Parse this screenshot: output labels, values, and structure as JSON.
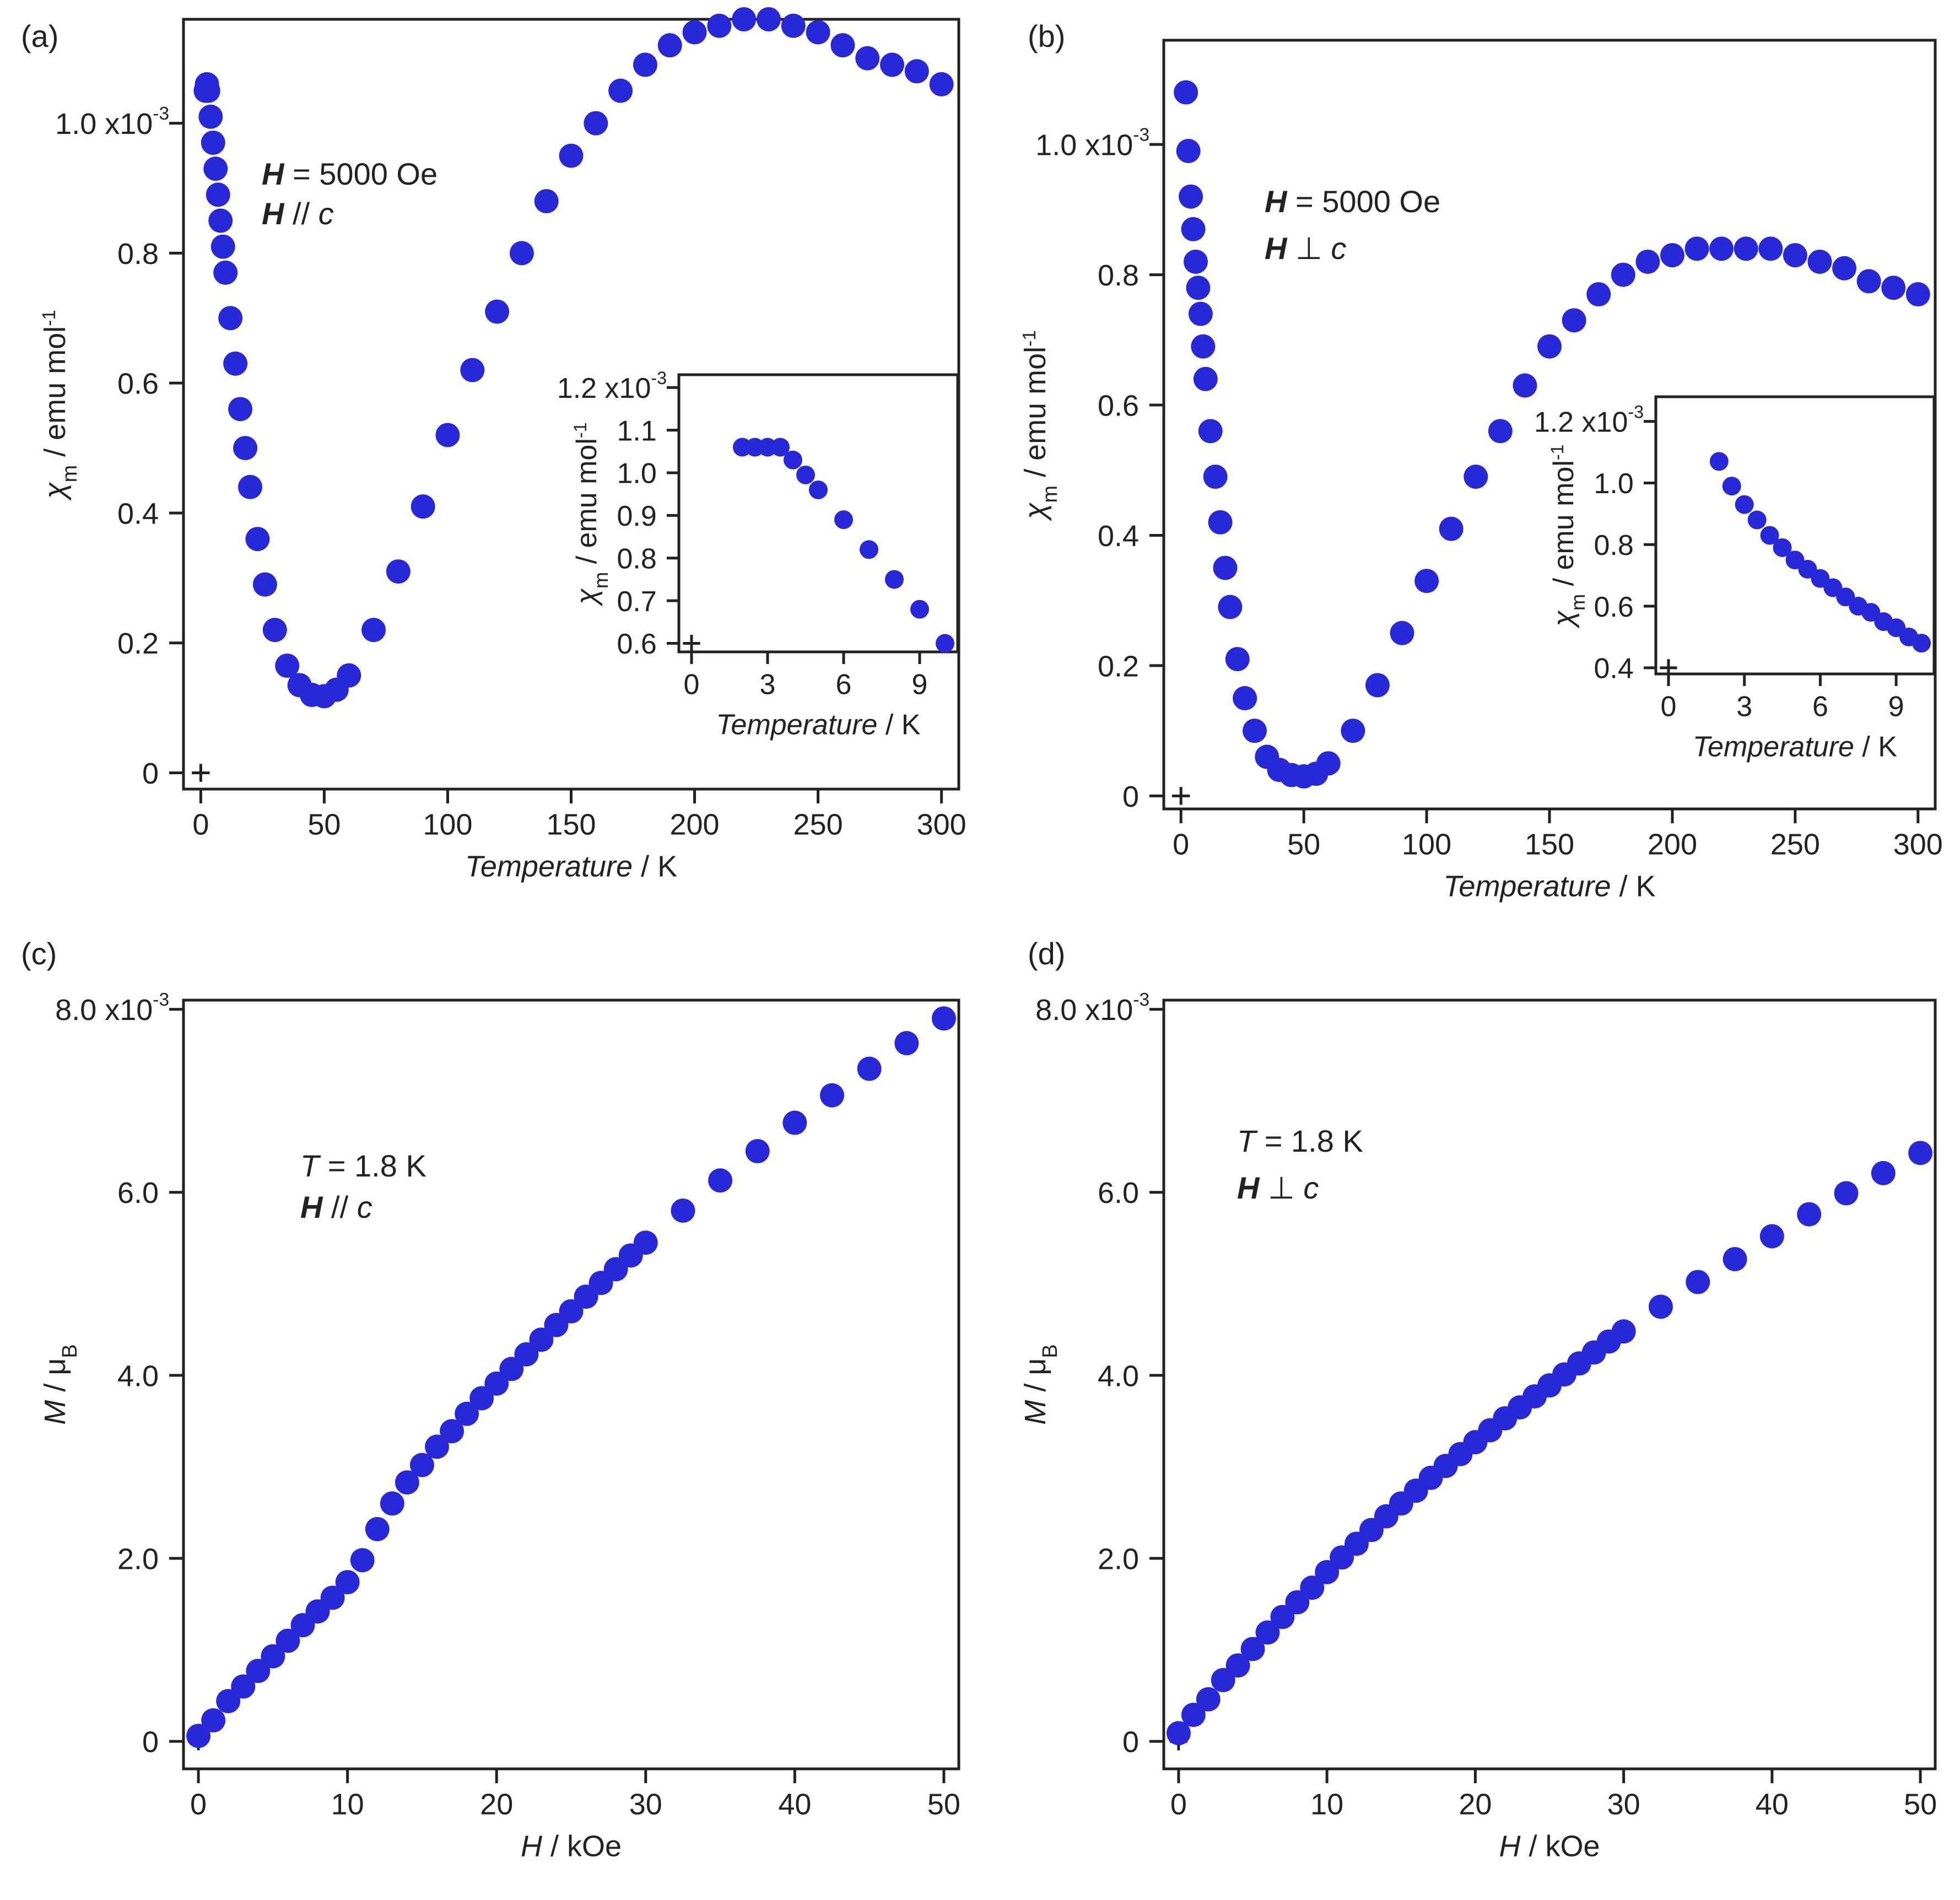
{
  "figure": {
    "marker_color": "#2828D8",
    "axis_color": "#222222"
  },
  "chart_data": [
    {
      "id": "a",
      "panel_label": "(a)",
      "type": "scatter",
      "xlabel": {
        "italic": "Temperature",
        "rest": " / K"
      },
      "ylabel": {
        "chi": "χ",
        "sub": "m",
        "rest": " / emu mol",
        "sup": "-1"
      },
      "xlim": [
        -7,
        307
      ],
      "ylim": [
        -2.5e-05,
        0.00116
      ],
      "xticks": [
        0,
        50,
        100,
        150,
        200,
        250,
        300
      ],
      "xtick_labels": [
        "0",
        "50",
        "100",
        "150",
        "200",
        "250",
        "300"
      ],
      "yticks": [
        0,
        0.0002,
        0.0004,
        0.0006,
        0.0008,
        0.001
      ],
      "ytick_labels": [
        "0",
        "0.2",
        "0.4",
        "0.6",
        "0.8",
        "1.0 x10"
      ],
      "ytick_sups": [
        "",
        "",
        "",
        "",
        "",
        "-3"
      ],
      "annotations": [
        {
          "bold_italic": "H",
          "rest": " = 5000 Oe"
        },
        {
          "bold_italic": "H",
          "rest": " // ",
          "italic": "c"
        }
      ],
      "series": [
        {
          "name": "χm vs T (H // c)",
          "x": [
            2,
            2.5,
            3,
            4,
            5,
            6,
            7,
            8,
            9,
            10,
            12,
            14,
            16,
            18,
            20,
            23,
            26,
            30,
            35,
            40,
            45,
            50,
            55,
            60,
            70,
            80,
            90,
            100,
            110,
            120,
            130,
            140,
            150,
            160,
            170,
            180,
            190,
            200,
            210,
            220,
            230,
            240,
            250,
            260,
            270,
            280,
            290,
            300
          ],
          "y": [
            0.00105,
            0.00106,
            0.00105,
            0.00101,
            0.00097,
            0.00093,
            0.00089,
            0.00085,
            0.00081,
            0.00077,
            0.0007,
            0.00063,
            0.00056,
            0.0005,
            0.00044,
            0.00036,
            0.00029,
            0.00022,
            0.000165,
            0.000135,
            0.00012,
            0.000118,
            0.000128,
            0.00015,
            0.00022,
            0.00031,
            0.00041,
            0.00052,
            0.00062,
            0.00071,
            0.0008,
            0.00088,
            0.00095,
            0.001,
            0.00105,
            0.00109,
            0.00112,
            0.00114,
            0.00115,
            0.00116,
            0.00116,
            0.00115,
            0.00114,
            0.00112,
            0.0011,
            0.00109,
            0.00108,
            0.00106
          ]
        }
      ],
      "inset": {
        "xlabel": {
          "italic": "Temperature",
          "rest": " / K"
        },
        "ylabel": {
          "chi": "χ",
          "sub": "m",
          "rest": " / emu mol",
          "sup": "-1"
        },
        "xlim": [
          -0.5,
          10.5
        ],
        "ylim": [
          0.00058,
          0.00123
        ],
        "xticks": [
          0,
          3,
          6,
          9
        ],
        "xtick_labels": [
          "0",
          "3",
          "6",
          "9"
        ],
        "yticks": [
          0.0006,
          0.0007,
          0.0008,
          0.0009,
          0.001,
          0.0011,
          0.0012
        ],
        "ytick_labels": [
          "0.6",
          "0.7",
          "0.8",
          "0.9",
          "1.0",
          "1.1",
          "1.2 x10"
        ],
        "ytick_sups": [
          "",
          "",
          "",
          "",
          "",
          "",
          "-3"
        ],
        "series": [
          {
            "name": "inset H // c",
            "x": [
              2,
              2.5,
              3,
              3.5,
              4,
              4.5,
              5,
              6,
              7,
              8,
              9,
              10
            ],
            "y": [
              0.00106,
              0.00106,
              0.00106,
              0.00106,
              0.00103,
              0.000995,
              0.00096,
              0.00089,
              0.00082,
              0.00075,
              0.00068,
              0.0006
            ]
          }
        ]
      }
    },
    {
      "id": "b",
      "panel_label": "(b)",
      "type": "scatter",
      "xlabel": {
        "italic": "Temperature",
        "rest": " / K"
      },
      "ylabel": {
        "chi": "χ",
        "sub": "m",
        "rest": " / emu mol",
        "sup": "-1"
      },
      "xlim": [
        -7,
        307
      ],
      "ylim": [
        -2e-05,
        0.00116
      ],
      "xticks": [
        0,
        50,
        100,
        150,
        200,
        250,
        300
      ],
      "xtick_labels": [
        "0",
        "50",
        "100",
        "150",
        "200",
        "250",
        "300"
      ],
      "yticks": [
        0,
        0.0002,
        0.0004,
        0.0006,
        0.0008,
        0.001
      ],
      "ytick_labels": [
        "0",
        "0.2",
        "0.4",
        "0.6",
        "0.8",
        "1.0 x10"
      ],
      "ytick_sups": [
        "",
        "",
        "",
        "",
        "",
        "-3"
      ],
      "annotations": [
        {
          "bold_italic": "H",
          "rest": " = 5000 Oe"
        },
        {
          "bold_italic": "H",
          "rest": " ⊥ ",
          "italic": "c"
        }
      ],
      "series": [
        {
          "name": "χm vs T (H ⊥ c)",
          "x": [
            2,
            3,
            4,
            5,
            6,
            7,
            8,
            9,
            10,
            12,
            14,
            16,
            18,
            20,
            23,
            26,
            30,
            35,
            40,
            45,
            50,
            55,
            60,
            70,
            80,
            90,
            100,
            110,
            120,
            130,
            140,
            150,
            160,
            170,
            180,
            190,
            200,
            210,
            220,
            230,
            240,
            250,
            260,
            270,
            280,
            290,
            300
          ],
          "y": [
            0.00108,
            0.00099,
            0.00092,
            0.00087,
            0.00082,
            0.00078,
            0.00074,
            0.00069,
            0.00064,
            0.00056,
            0.00049,
            0.00042,
            0.00035,
            0.00029,
            0.00021,
            0.00015,
            0.0001,
            6e-05,
            4e-05,
            3.2e-05,
            3e-05,
            3.4e-05,
            5e-05,
            0.0001,
            0.00017,
            0.00025,
            0.00033,
            0.00041,
            0.00049,
            0.00056,
            0.00063,
            0.00069,
            0.00073,
            0.00077,
            0.0008,
            0.00082,
            0.00083,
            0.00084,
            0.00084,
            0.00084,
            0.00084,
            0.00083,
            0.00082,
            0.00081,
            0.00079,
            0.00078,
            0.00077
          ]
        }
      ],
      "inset": {
        "xlabel": {
          "italic": "Temperature",
          "rest": " / K"
        },
        "ylabel": {
          "chi": "χ",
          "sub": "m",
          "rest": " / emu mol",
          "sup": "-1"
        },
        "xlim": [
          -0.5,
          10.5
        ],
        "ylim": [
          0.00038,
          0.00128
        ],
        "xticks": [
          0,
          3,
          6,
          9
        ],
        "xtick_labels": [
          "0",
          "3",
          "6",
          "9"
        ],
        "yticks": [
          0.0004,
          0.0006,
          0.0008,
          0.001,
          0.0012
        ],
        "ytick_labels": [
          "0.4",
          "0.6",
          "0.8",
          "1.0",
          "1.2 x10"
        ],
        "ytick_sups": [
          "",
          "",
          "",
          "",
          "-3"
        ],
        "series": [
          {
            "name": "inset H ⊥ c",
            "x": [
              2,
              2.5,
              3,
              3.5,
              4,
              4.5,
              5,
              5.5,
              6,
              6.5,
              7,
              7.5,
              8,
              8.5,
              9,
              9.5,
              10
            ],
            "y": [
              0.00107,
              0.00099,
              0.00093,
              0.00088,
              0.00083,
              0.00079,
              0.00075,
              0.00072,
              0.00069,
              0.00066,
              0.00063,
              0.0006,
              0.00058,
              0.00055,
              0.00053,
              0.0005,
              0.00048
            ]
          }
        ]
      }
    },
    {
      "id": "c",
      "panel_label": "(c)",
      "type": "scatter",
      "xlabel": {
        "italic": "H",
        "rest": " / kOe"
      },
      "ylabel": {
        "italic": "M",
        "rest": " / μ",
        "sub": "B"
      },
      "xlim": [
        -1,
        51
      ],
      "ylim": [
        -0.0003,
        0.0081
      ],
      "xticks": [
        0,
        10,
        20,
        30,
        40,
        50
      ],
      "xtick_labels": [
        "0",
        "10",
        "20",
        "30",
        "40",
        "50"
      ],
      "yticks": [
        0,
        0.002,
        0.004,
        0.006,
        0.008
      ],
      "ytick_labels": [
        "0",
        "2.0",
        "4.0",
        "6.0",
        "8.0 x10"
      ],
      "ytick_sups": [
        "",
        "",
        "",
        "",
        "-3"
      ],
      "annotations": [
        {
          "italic": "T",
          "rest": " = 1.8 K"
        },
        {
          "bold_italic": "H",
          "rest": " // ",
          "italic": "c"
        }
      ],
      "series": [
        {
          "name": "M vs H (H // c)",
          "x": [
            0,
            1,
            2,
            3,
            4,
            5,
            6,
            7,
            8,
            9,
            10,
            11,
            12,
            13,
            14,
            15,
            16,
            17,
            18,
            19,
            20,
            21,
            22,
            23,
            24,
            25,
            26,
            27,
            28,
            29,
            30,
            32.5,
            35,
            37.5,
            40,
            42.5,
            45,
            47.5,
            50
          ],
          "y": [
            6e-05,
            0.00023,
            0.00044,
            0.0006,
            0.00077,
            0.00093,
            0.0011,
            0.00127,
            0.00142,
            0.00157,
            0.00174,
            0.00198,
            0.00232,
            0.0026,
            0.00283,
            0.00302,
            0.00322,
            0.00339,
            0.00358,
            0.00375,
            0.00391,
            0.00407,
            0.00423,
            0.00439,
            0.00455,
            0.0047,
            0.00486,
            0.00501,
            0.00516,
            0.00531,
            0.00545,
            0.0058,
            0.00613,
            0.00645,
            0.00676,
            0.00706,
            0.00735,
            0.00763,
            0.0079
          ]
        }
      ]
    },
    {
      "id": "d",
      "panel_label": "(d)",
      "type": "scatter",
      "xlabel": {
        "italic": "H",
        "rest": " / kOe"
      },
      "ylabel": {
        "italic": "M",
        "rest": " / μ",
        "sub": "B"
      },
      "xlim": [
        -1,
        51
      ],
      "ylim": [
        -0.0003,
        0.0081
      ],
      "xticks": [
        0,
        10,
        20,
        30,
        40,
        50
      ],
      "xtick_labels": [
        "0",
        "10",
        "20",
        "30",
        "40",
        "50"
      ],
      "yticks": [
        0,
        0.002,
        0.004,
        0.006,
        0.008
      ],
      "ytick_labels": [
        "0",
        "2.0",
        "4.0",
        "6.0",
        "8.0 x10"
      ],
      "ytick_sups": [
        "",
        "",
        "",
        "",
        "-3"
      ],
      "annotations": [
        {
          "italic": "T",
          "rest": " = 1.8 K"
        },
        {
          "bold_italic": "H",
          "rest": " ⊥ ",
          "italic": "c"
        }
      ],
      "series": [
        {
          "name": "M vs H (H ⊥ c)",
          "x": [
            0,
            1,
            2,
            3,
            4,
            5,
            6,
            7,
            8,
            9,
            10,
            11,
            12,
            13,
            14,
            15,
            16,
            17,
            18,
            19,
            20,
            21,
            22,
            23,
            24,
            25,
            26,
            27,
            28,
            29,
            30,
            32.5,
            35,
            37.5,
            40,
            42.5,
            45,
            47.5,
            50
          ],
          "y": [
            9e-05,
            0.00029,
            0.00046,
            0.00067,
            0.00083,
            0.00101,
            0.00119,
            0.00136,
            0.00152,
            0.00168,
            0.00185,
            0.00201,
            0.00216,
            0.00231,
            0.00246,
            0.0026,
            0.00274,
            0.00288,
            0.00301,
            0.00314,
            0.00327,
            0.0034,
            0.00353,
            0.00365,
            0.00377,
            0.00389,
            0.00401,
            0.00413,
            0.00425,
            0.00437,
            0.00448,
            0.00475,
            0.00502,
            0.00527,
            0.00552,
            0.00576,
            0.00599,
            0.00621,
            0.00643
          ]
        }
      ]
    }
  ]
}
